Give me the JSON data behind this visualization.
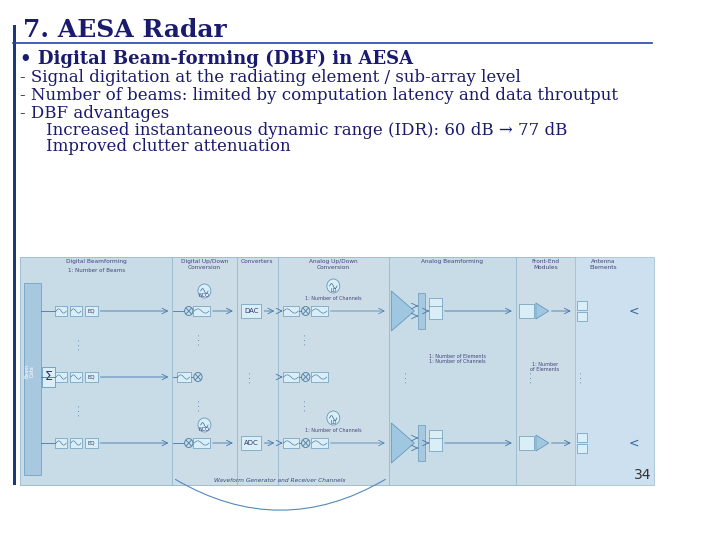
{
  "title": "7. AESA Radar",
  "title_color": "#1a1a6e",
  "title_fontsize": 18,
  "title_fontstyle": "bold",
  "bg_color": "#ffffff",
  "left_bar_color": "#1a3a7a",
  "header_line_color": "#2244aa",
  "bullet_lines": [
    {
      "text": "• Digital Beam-forming (DBF) in AESA",
      "indent": 0,
      "bold": true,
      "fontsize": 13
    },
    {
      "text": "- Signal digitation at the radiating element / sub-array level",
      "indent": 0,
      "bold": false,
      "fontsize": 12
    },
    {
      "text": "- Number of beams: limited by computation latency and data throutput",
      "indent": 0,
      "bold": false,
      "fontsize": 12
    },
    {
      "text": "- DBF advantages",
      "indent": 0,
      "bold": false,
      "fontsize": 12
    },
    {
      "text": "Increased instantaneous dynamic range (IDR): 60 dB → 77 dB",
      "indent": 1,
      "bold": false,
      "fontsize": 12
    },
    {
      "text": "Improved clutter attenuation",
      "indent": 1,
      "bold": false,
      "fontsize": 12
    }
  ],
  "page_number": "34",
  "text_color": "#1a1a6e",
  "diag_bg": "#d4e8f5",
  "diag_border": "#8ab0cc",
  "block_fc": "#b8d4e8",
  "block_ec": "#6699bb",
  "light_block_fc": "#daeef8",
  "section_label_color": "#444477",
  "arrow_color": "#4477aa"
}
